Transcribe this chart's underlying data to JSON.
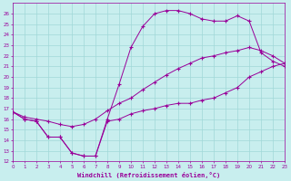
{
  "xlabel": "Windchill (Refroidissement éolien,°C)",
  "xlim": [
    0,
    23
  ],
  "ylim": [
    12,
    27
  ],
  "xticks": [
    0,
    1,
    2,
    3,
    4,
    5,
    6,
    7,
    8,
    9,
    10,
    11,
    12,
    13,
    14,
    15,
    16,
    17,
    18,
    19,
    20,
    21,
    22,
    23
  ],
  "yticks": [
    12,
    13,
    14,
    15,
    16,
    17,
    18,
    19,
    20,
    21,
    22,
    23,
    24,
    25,
    26
  ],
  "bg_color": "#c8eeee",
  "line_color": "#990099",
  "grid_color": "#a0d8d8",
  "line1_x": [
    0,
    1,
    2,
    3,
    4,
    5,
    6,
    7,
    8,
    9,
    10,
    11,
    12,
    13,
    14,
    15,
    16,
    17,
    18,
    19,
    20,
    21,
    22,
    23
  ],
  "line1_y": [
    16.7,
    16.0,
    15.8,
    14.3,
    14.3,
    12.8,
    12.5,
    12.5,
    15.8,
    16.0,
    16.5,
    16.8,
    17.0,
    17.3,
    17.5,
    17.5,
    17.8,
    18.0,
    18.5,
    19.0,
    20.0,
    20.5,
    21.0,
    21.3
  ],
  "line2_x": [
    0,
    1,
    2,
    3,
    4,
    5,
    6,
    7,
    8,
    9,
    10,
    11,
    12,
    13,
    14,
    15,
    16,
    17,
    18,
    19,
    20,
    21,
    22,
    23
  ],
  "line2_y": [
    16.7,
    16.2,
    16.0,
    15.8,
    15.5,
    15.3,
    15.5,
    16.0,
    16.8,
    17.5,
    18.0,
    18.8,
    19.5,
    20.2,
    20.8,
    21.3,
    21.8,
    22.0,
    22.3,
    22.5,
    22.8,
    22.5,
    22.0,
    21.3
  ],
  "line3_x": [
    0,
    1,
    2,
    3,
    4,
    5,
    6,
    7,
    8,
    9,
    10,
    11,
    12,
    13,
    14,
    15,
    16,
    17,
    18,
    19,
    20,
    21,
    22,
    23
  ],
  "line3_y": [
    16.7,
    16.0,
    15.8,
    14.3,
    14.3,
    12.8,
    12.5,
    12.5,
    16.0,
    19.3,
    22.8,
    24.8,
    26.0,
    26.3,
    26.3,
    26.0,
    25.5,
    25.3,
    25.3,
    25.8,
    25.3,
    22.3,
    21.5,
    21.0
  ]
}
